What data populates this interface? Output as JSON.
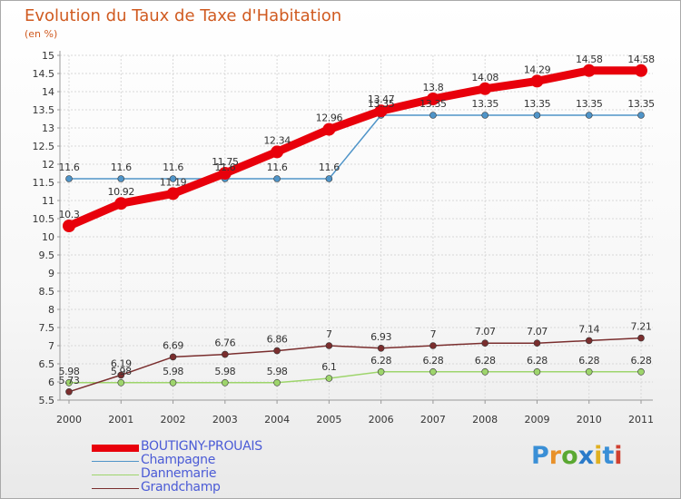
{
  "title": "Evolution du Taux de Taxe d'Habitation",
  "unit_label": "(en %)",
  "logo_text": "Proxiti",
  "logo_colors": [
    "#3a8fd6",
    "#e8912a",
    "#5aa832",
    "#2a7ac9",
    "#e0b020",
    "#3a8fd6",
    "#d04030"
  ],
  "chart_data": {
    "type": "line",
    "title": "Evolution du Taux de Taxe d'Habitation",
    "ylabel": "(en %)",
    "xlabel": "",
    "ylim": [
      5.5,
      15
    ],
    "y_ticks": [
      "5.5",
      "6",
      "6.5",
      "7",
      "7.5",
      "8",
      "8.5",
      "9",
      "9.5",
      "10",
      "10.5",
      "11",
      "11.5",
      "12",
      "12.5",
      "13",
      "13.5",
      "14",
      "14.5",
      "15"
    ],
    "categories": [
      "2000",
      "2001",
      "2002",
      "2003",
      "2004",
      "2005",
      "2006",
      "2007",
      "2008",
      "2009",
      "2010",
      "2011"
    ],
    "grid": true,
    "legend_position": "bottom-left",
    "series": [
      {
        "name": "BOUTIGNY-PROUAIS",
        "color": "#e8000b",
        "values": [
          10.3,
          10.92,
          11.19,
          11.75,
          12.34,
          12.96,
          13.47,
          13.8,
          14.08,
          14.29,
          14.58,
          14.58
        ],
        "labels": [
          "10.3",
          "10.92",
          "11.19",
          "11.75",
          "12.34",
          "12.96",
          "13.47",
          "13.8",
          "14.08",
          "14.29",
          "14.58",
          "14.58"
        ]
      },
      {
        "name": "Champagne",
        "color": "#4f94c8",
        "values": [
          11.6,
          11.6,
          11.6,
          11.6,
          11.6,
          11.6,
          13.35,
          13.35,
          13.35,
          13.35,
          13.35,
          13.35
        ],
        "labels": [
          "11.6",
          "11.6",
          "11.6",
          "11.6",
          "11.6",
          "11.6",
          "13.35",
          "13.35",
          "13.35",
          "13.35",
          "13.35",
          "13.35"
        ]
      },
      {
        "name": "Dannemarie",
        "color": "#9ed56c",
        "values": [
          5.98,
          5.98,
          5.98,
          5.98,
          5.98,
          6.1,
          6.28,
          6.28,
          6.28,
          6.28,
          6.28,
          6.28
        ],
        "labels": [
          "5.98",
          "5.98",
          "5.98",
          "5.98",
          "5.98",
          "6.1",
          "6.28",
          "6.28",
          "6.28",
          "6.28",
          "6.28",
          "6.28"
        ]
      },
      {
        "name": "Grandchamp",
        "color": "#7a2e2e",
        "values": [
          5.73,
          6.19,
          6.69,
          6.76,
          6.86,
          7,
          6.93,
          7,
          7.07,
          7.07,
          7.14,
          7.21
        ],
        "labels": [
          "5.73",
          "6.19",
          "6.69",
          "6.76",
          "6.86",
          "7",
          "6.93",
          "7",
          "7.07",
          "7.07",
          "7.14",
          "7.21"
        ]
      }
    ]
  }
}
